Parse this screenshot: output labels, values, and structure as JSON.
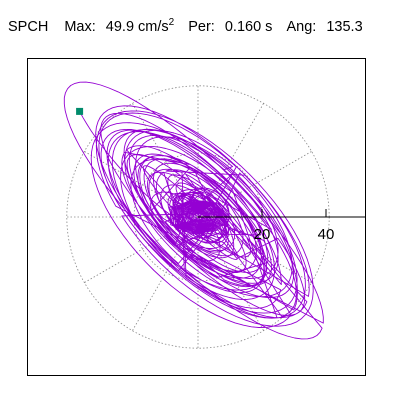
{
  "header": {
    "station": "SPCH",
    "max_label": "Max:",
    "max_value": "49.9 cm/s",
    "max_unit_sup": "2",
    "per_label": "Per:",
    "per_value": "0.160 s",
    "ang_label": "Ang:",
    "ang_value": "135.3"
  },
  "colors": {
    "trace": "#9400d3",
    "marker": "#008b6b",
    "grid": "#888888",
    "axis": "#000000"
  },
  "chart_data": {
    "type": "scatter",
    "polar_rings": [
      20,
      40
    ],
    "radial_spokes_deg": [
      30,
      60,
      90,
      120,
      150,
      180,
      210,
      240,
      270,
      300,
      330
    ],
    "tick_labels": [
      "20",
      "40"
    ],
    "max_radius": 41,
    "start_point": {
      "x": -37,
      "y": 33
    },
    "trace_direction_deg": 135.3,
    "trace_peak": 49.9
  }
}
